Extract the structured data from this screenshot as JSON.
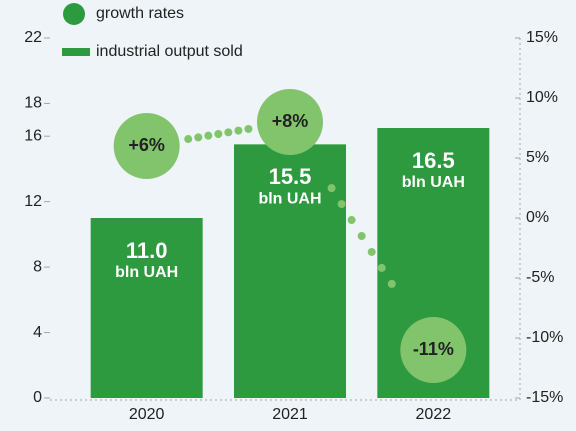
{
  "chart_data": {
    "type": "bar",
    "categories": [
      "2020",
      "2021",
      "2022"
    ],
    "unit": "bln UAH",
    "series": [
      {
        "name": "industrial output sold",
        "type": "bar",
        "color": "#2e9a3f",
        "values": [
          11.0,
          15.5,
          16.5
        ],
        "value_labels": [
          "11.0",
          "15.5",
          "16.5"
        ]
      },
      {
        "name": "growth rates",
        "type": "scatter",
        "axis": "y2",
        "color": "#82c46c",
        "values": [
          6,
          8,
          -11
        ],
        "value_labels": [
          "+6%",
          "+8%",
          "-11%"
        ]
      }
    ],
    "ylim": [
      0,
      22
    ],
    "yticks": [
      0,
      4,
      8,
      12,
      16,
      18,
      22
    ],
    "y2lim": [
      -15,
      15
    ],
    "y2ticks": [
      {
        "value": -15,
        "label": "-15%"
      },
      {
        "value": -10,
        "label": "-10%"
      },
      {
        "value": -5,
        "label": "-5%"
      },
      {
        "value": 0,
        "label": "0%"
      },
      {
        "value": 5,
        "label": "5%"
      },
      {
        "value": 10,
        "label": "10%"
      },
      {
        "value": 15,
        "label": "15%"
      }
    ],
    "legend": "top-left"
  }
}
